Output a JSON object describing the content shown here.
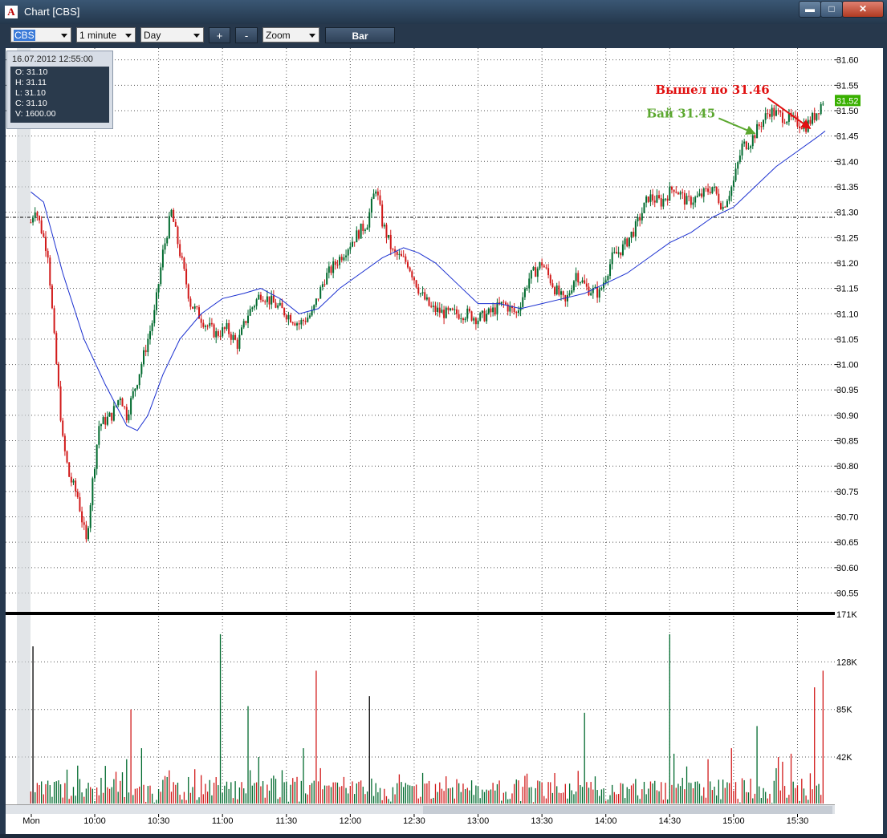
{
  "window": {
    "title": "Chart [CBS]",
    "app_icon": "A",
    "controls": [
      "minimize-icon",
      "maximize-icon",
      "close-icon"
    ]
  },
  "toolbar": {
    "symbol": "CBS",
    "interval": "1 minute",
    "range": "Day",
    "zoom_in": "+",
    "zoom_out": "-",
    "zoom": "Zoom",
    "chart_style": "Bar"
  },
  "info": {
    "datetime": "16.07.2012 12:55:00",
    "open": "O: 31.10",
    "high": "H: 31.11",
    "low": "L: 31.10",
    "close": "C: 31.10",
    "volume": "V: 1600.00"
  },
  "colors": {
    "up": "#006a2e",
    "down": "#d11a1a",
    "ma": "#1a2fd0",
    "grid": "#555555",
    "last_price_tag": "#39b000",
    "annotation_buy": "#5ca830",
    "annotation_exit": "#e01010"
  },
  "chart_data": {
    "type": "bar",
    "subtype": "ohlc-candles-with-volume",
    "title": "",
    "x_tick_labels": [
      "Mon",
      "10:00",
      "10:30",
      "11:00",
      "11:30",
      "12:00",
      "12:30",
      "13:00",
      "13:30",
      "14:00",
      "14:30",
      "15:00",
      "15:30"
    ],
    "price_axis": {
      "ticks": [
        "31.60",
        "31.55",
        "31.50",
        "31.45",
        "31.40",
        "31.35",
        "31.30",
        "31.25",
        "31.20",
        "31.15",
        "31.10",
        "31.05",
        "31.00",
        "30.95",
        "30.90",
        "30.85",
        "30.80",
        "30.75",
        "30.70",
        "30.65",
        "30.60",
        "30.55"
      ],
      "ylim": [
        30.535,
        31.605
      ],
      "last_price": "31.52",
      "reference_line": 31.29
    },
    "volume_axis": {
      "ticks": [
        "171K",
        "128K",
        "85K",
        "42K"
      ],
      "ylim": [
        0,
        171000
      ]
    },
    "price_path": [
      [
        "09:30",
        31.28
      ],
      [
        "09:32",
        31.31
      ],
      [
        "09:38",
        31.22
      ],
      [
        "09:41",
        31.05
      ],
      [
        "09:45",
        30.85
      ],
      [
        "09:48",
        30.78
      ],
      [
        "09:52",
        30.74
      ],
      [
        "09:56",
        30.65
      ],
      [
        "09:59",
        30.77
      ],
      [
        "10:02",
        30.88
      ],
      [
        "10:08",
        30.9
      ],
      [
        "10:12",
        30.94
      ],
      [
        "10:15",
        30.9
      ],
      [
        "10:20",
        30.97
      ],
      [
        "10:25",
        31.05
      ],
      [
        "10:28",
        31.1
      ],
      [
        "10:32",
        31.22
      ],
      [
        "10:36",
        31.3
      ],
      [
        "10:40",
        31.22
      ],
      [
        "10:45",
        31.12
      ],
      [
        "10:52",
        31.08
      ],
      [
        "10:57",
        31.06
      ],
      [
        "11:02",
        31.07
      ],
      [
        "11:07",
        31.04
      ],
      [
        "11:12",
        31.1
      ],
      [
        "11:18",
        31.14
      ],
      [
        "11:24",
        31.12
      ],
      [
        "11:30",
        31.1
      ],
      [
        "11:36",
        31.08
      ],
      [
        "11:42",
        31.1
      ],
      [
        "11:48",
        31.17
      ],
      [
        "11:55",
        31.21
      ],
      [
        "12:02",
        31.25
      ],
      [
        "12:08",
        31.28
      ],
      [
        "12:12",
        31.35
      ],
      [
        "12:15",
        31.28
      ],
      [
        "12:20",
        31.22
      ],
      [
        "12:27",
        31.2
      ],
      [
        "12:33",
        31.14
      ],
      [
        "12:38",
        31.11
      ],
      [
        "12:45",
        31.1
      ],
      [
        "12:55",
        31.1
      ],
      [
        "13:00",
        31.09
      ],
      [
        "13:05",
        31.1
      ],
      [
        "13:12",
        31.12
      ],
      [
        "13:18",
        31.1
      ],
      [
        "13:24",
        31.17
      ],
      [
        "13:30",
        31.2
      ],
      [
        "13:36",
        31.15
      ],
      [
        "13:41",
        31.12
      ],
      [
        "13:46",
        31.18
      ],
      [
        "13:51",
        31.15
      ],
      [
        "13:57",
        31.14
      ],
      [
        "14:03",
        31.21
      ],
      [
        "14:08",
        31.23
      ],
      [
        "14:14",
        31.27
      ],
      [
        "14:20",
        31.33
      ],
      [
        "14:26",
        31.32
      ],
      [
        "14:32",
        31.35
      ],
      [
        "14:38",
        31.32
      ],
      [
        "14:44",
        31.33
      ],
      [
        "14:50",
        31.35
      ],
      [
        "14:55",
        31.31
      ],
      [
        "15:00",
        31.36
      ],
      [
        "15:04",
        31.43
      ],
      [
        "15:08",
        31.44
      ],
      [
        "15:12",
        31.47
      ],
      [
        "15:17",
        31.5
      ],
      [
        "15:22",
        31.49
      ],
      [
        "15:28",
        31.48
      ],
      [
        "15:34",
        31.47
      ],
      [
        "15:38",
        31.49
      ],
      [
        "15:42",
        31.52
      ]
    ],
    "moving_average": [
      [
        "09:30",
        31.34
      ],
      [
        "09:36",
        31.32
      ],
      [
        "09:45",
        31.18
      ],
      [
        "09:55",
        31.05
      ],
      [
        "10:05",
        30.96
      ],
      [
        "10:15",
        30.88
      ],
      [
        "10:20",
        30.87
      ],
      [
        "10:25",
        30.9
      ],
      [
        "10:32",
        30.98
      ],
      [
        "10:40",
        31.05
      ],
      [
        "10:50",
        31.1
      ],
      [
        "11:00",
        31.13
      ],
      [
        "11:10",
        31.14
      ],
      [
        "11:18",
        31.15
      ],
      [
        "11:27",
        31.13
      ],
      [
        "11:36",
        31.1
      ],
      [
        "11:45",
        31.11
      ],
      [
        "11:55",
        31.15
      ],
      [
        "12:05",
        31.18
      ],
      [
        "12:15",
        31.21
      ],
      [
        "12:25",
        31.23
      ],
      [
        "12:32",
        31.22
      ],
      [
        "12:40",
        31.2
      ],
      [
        "12:50",
        31.16
      ],
      [
        "13:00",
        31.12
      ],
      [
        "13:10",
        31.12
      ],
      [
        "13:20",
        31.11
      ],
      [
        "13:30",
        31.12
      ],
      [
        "13:40",
        31.13
      ],
      [
        "13:50",
        31.14
      ],
      [
        "14:00",
        31.16
      ],
      [
        "14:10",
        31.18
      ],
      [
        "14:20",
        31.21
      ],
      [
        "14:30",
        31.24
      ],
      [
        "14:40",
        31.26
      ],
      [
        "14:50",
        31.29
      ],
      [
        "15:00",
        31.31
      ],
      [
        "15:10",
        31.35
      ],
      [
        "15:20",
        31.39
      ],
      [
        "15:30",
        31.42
      ],
      [
        "15:40",
        31.45
      ],
      [
        "15:43",
        31.46
      ]
    ],
    "volume_peaks": [
      [
        "09:31",
        142000
      ],
      [
        "09:50",
        15000
      ],
      [
        "10:05",
        34000
      ],
      [
        "10:15",
        40000
      ],
      [
        "10:17",
        85000
      ],
      [
        "10:22",
        50000
      ],
      [
        "10:35",
        30000
      ],
      [
        "10:47",
        31000
      ],
      [
        "10:59",
        153000
      ],
      [
        "11:12",
        88000
      ],
      [
        "11:17",
        42000
      ],
      [
        "11:38",
        50000
      ],
      [
        "11:44",
        120000
      ],
      [
        "12:09",
        97000
      ],
      [
        "12:35",
        18000
      ],
      [
        "12:50",
        22000
      ],
      [
        "13:22",
        25000
      ],
      [
        "13:50",
        82000
      ],
      [
        "14:30",
        153000
      ],
      [
        "14:32",
        45000
      ],
      [
        "14:48",
        40000
      ],
      [
        "14:59",
        50000
      ],
      [
        "15:11",
        70000
      ],
      [
        "15:21",
        42000
      ],
      [
        "15:27",
        45000
      ],
      [
        "15:38",
        105000
      ],
      [
        "15:42",
        120000
      ]
    ],
    "annotations": [
      {
        "text": "Бай 31.45",
        "arrow_from": [
          "14:53",
          31.485
        ],
        "arrow_to": [
          "15:10",
          31.455
        ]
      },
      {
        "text": "Вышел по 31.46",
        "arrow_from": [
          "15:16",
          31.525
        ],
        "arrow_to": [
          "15:36",
          31.465
        ]
      }
    ]
  }
}
